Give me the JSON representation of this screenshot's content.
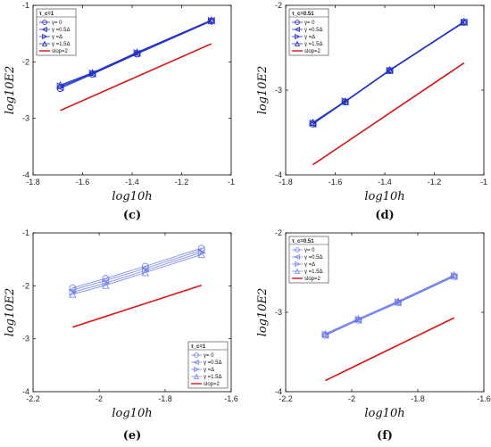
{
  "panels": [
    {
      "label": "(c)",
      "title": "",
      "xlabel": "log10h",
      "ylabel": "log10E2",
      "xlim": [
        -1.8,
        -1.0
      ],
      "ylim": [
        -4,
        -1
      ],
      "xticks": [
        -1.8,
        -1.6,
        -1.4,
        -1.2,
        -1.0
      ],
      "xtick_labels": [
        "-1.8",
        "-1.6",
        "-1.4",
        "-1.2",
        "-1"
      ],
      "yticks": [
        -4,
        -3,
        -2,
        -1
      ],
      "ytick_labels": [
        "-4",
        "-3",
        "-2",
        "-1"
      ],
      "legend_title": "τ_c=1",
      "legend_position": "top-left",
      "marker_color": "#2233cc",
      "marker_opacity": 1,
      "series": [
        {
          "name": "γ= 0",
          "marker": "circle",
          "x": [
            -1.69,
            -1.56,
            -1.38,
            -1.08
          ],
          "y": [
            -2.47,
            -2.22,
            -1.86,
            -1.28
          ]
        },
        {
          "name": "γ =0.5Δ",
          "marker": "triangle-left",
          "x": [
            -1.69,
            -1.56,
            -1.38,
            -1.08
          ],
          "y": [
            -2.45,
            -2.21,
            -1.85,
            -1.27
          ]
        },
        {
          "name": "γ =Δ",
          "marker": "triangle-right",
          "x": [
            -1.69,
            -1.56,
            -1.38,
            -1.08
          ],
          "y": [
            -2.43,
            -2.2,
            -1.84,
            -1.27
          ]
        },
        {
          "name": "γ =1.5Δ",
          "marker": "triangle-up",
          "x": [
            -1.69,
            -1.56,
            -1.38,
            -1.08
          ],
          "y": [
            -2.41,
            -2.19,
            -1.83,
            -1.26
          ]
        }
      ],
      "ref_line": {
        "name": "slop=2",
        "color": "#dd1111",
        "x": [
          -1.69,
          -1.08
        ],
        "y": [
          -2.86,
          -1.68
        ]
      }
    },
    {
      "label": "(d)",
      "title": "",
      "xlabel": "log10h",
      "ylabel": "log10E2",
      "xlim": [
        -1.8,
        -1.0
      ],
      "ylim": [
        -4,
        -2
      ],
      "xticks": [
        -1.8,
        -1.6,
        -1.4,
        -1.2,
        -1.0
      ],
      "xtick_labels": [
        "-1.8",
        "-1.6",
        "-1.4",
        "-1.2",
        "-1"
      ],
      "yticks": [
        -4,
        -3,
        -2
      ],
      "ytick_labels": [
        "-4",
        "-3",
        "-2"
      ],
      "legend_title": "τ_c=0.51",
      "legend_position": "top-left",
      "marker_color": "#2233cc",
      "marker_opacity": 1,
      "series": [
        {
          "name": "γ= 0",
          "marker": "circle",
          "x": [
            -1.69,
            -1.56,
            -1.38,
            -1.08
          ],
          "y": [
            -3.4,
            -3.14,
            -2.77,
            -2.2
          ]
        },
        {
          "name": "γ =0.5Δ",
          "marker": "triangle-left",
          "x": [
            -1.69,
            -1.56,
            -1.38,
            -1.08
          ],
          "y": [
            -3.4,
            -3.14,
            -2.77,
            -2.2
          ]
        },
        {
          "name": "γ =Δ",
          "marker": "triangle-right",
          "x": [
            -1.69,
            -1.56,
            -1.38,
            -1.08
          ],
          "y": [
            -3.39,
            -3.13,
            -2.77,
            -2.2
          ]
        },
        {
          "name": "γ =1.5Δ",
          "marker": "triangle-up",
          "x": [
            -1.69,
            -1.56,
            -1.38,
            -1.08
          ],
          "y": [
            -3.38,
            -3.13,
            -2.76,
            -2.19
          ]
        }
      ],
      "ref_line": {
        "name": "slop=2",
        "color": "#dd1111",
        "x": [
          -1.69,
          -1.08
        ],
        "y": [
          -3.88,
          -2.68
        ]
      }
    },
    {
      "label": "(e)",
      "title": "",
      "xlabel": "log10h",
      "ylabel": "log10E2",
      "xlim": [
        -2.2,
        -1.6
      ],
      "ylim": [
        -4,
        -1
      ],
      "xticks": [
        -2.2,
        -2.0,
        -1.8,
        -1.6
      ],
      "xtick_labels": [
        "-2.2",
        "-2",
        "-1.8",
        "-1.6"
      ],
      "yticks": [
        -4,
        -3,
        -2,
        -1
      ],
      "ytick_labels": [
        "-4",
        "-3",
        "-2",
        "-1"
      ],
      "legend_title": "τ_c=1",
      "legend_position": "bottom-right",
      "marker_color": "#6677ee",
      "marker_opacity": 0.85,
      "series": [
        {
          "name": "γ= 0",
          "marker": "circle",
          "x": [
            -2.08,
            -1.98,
            -1.86,
            -1.69
          ],
          "y": [
            -2.04,
            -1.86,
            -1.63,
            -1.29
          ]
        },
        {
          "name": "γ =0.5Δ",
          "marker": "triangle-left",
          "x": [
            -2.08,
            -1.98,
            -1.86,
            -1.69
          ],
          "y": [
            -2.08,
            -1.9,
            -1.67,
            -1.33
          ]
        },
        {
          "name": "γ =Δ",
          "marker": "triangle-right",
          "x": [
            -2.08,
            -1.98,
            -1.86,
            -1.69
          ],
          "y": [
            -2.12,
            -1.95,
            -1.71,
            -1.37
          ]
        },
        {
          "name": "γ =1.5Δ",
          "marker": "triangle-up",
          "x": [
            -2.08,
            -1.98,
            -1.86,
            -1.69
          ],
          "y": [
            -2.16,
            -1.99,
            -1.75,
            -1.41
          ]
        }
      ],
      "ref_line": {
        "name": "slop=2",
        "color": "#dd1111",
        "x": [
          -2.08,
          -1.69
        ],
        "y": [
          -2.78,
          -1.99
        ]
      }
    },
    {
      "label": "(f)",
      "title": "",
      "xlabel": "log10h",
      "ylabel": "log10E2",
      "xlim": [
        -2.2,
        -1.6
      ],
      "ylim": [
        -4,
        -2
      ],
      "xticks": [
        -2.2,
        -2.0,
        -1.8,
        -1.6
      ],
      "xtick_labels": [
        "-2.2",
        "-2",
        "-1.8",
        "-1.6"
      ],
      "yticks": [
        -4,
        -3,
        -2
      ],
      "ytick_labels": [
        "-4",
        "-3",
        "-2"
      ],
      "legend_title": "τ_c=0.51",
      "legend_position": "top-left",
      "marker_color": "#6677ee",
      "marker_opacity": 0.85,
      "series": [
        {
          "name": "γ= 0",
          "marker": "circle",
          "x": [
            -2.08,
            -1.98,
            -1.86,
            -1.69
          ],
          "y": [
            -3.29,
            -3.1,
            -2.88,
            -2.55
          ]
        },
        {
          "name": "γ =0.5Δ",
          "marker": "triangle-left",
          "x": [
            -2.08,
            -1.98,
            -1.86,
            -1.69
          ],
          "y": [
            -3.29,
            -3.1,
            -2.88,
            -2.55
          ]
        },
        {
          "name": "γ =Δ",
          "marker": "triangle-right",
          "x": [
            -2.08,
            -1.98,
            -1.86,
            -1.69
          ],
          "y": [
            -3.28,
            -3.09,
            -2.87,
            -2.54
          ]
        },
        {
          "name": "γ =1.5Δ",
          "marker": "triangle-up",
          "x": [
            -2.08,
            -1.98,
            -1.86,
            -1.69
          ],
          "y": [
            -3.27,
            -3.08,
            -2.86,
            -2.53
          ]
        }
      ],
      "ref_line": {
        "name": "slop=2",
        "color": "#dd1111",
        "x": [
          -2.08,
          -1.69
        ],
        "y": [
          -3.86,
          -3.07
        ]
      }
    }
  ],
  "chart_data": [
    {
      "type": "line",
      "panel": "(c)",
      "xlabel": "log10h",
      "ylabel": "log10E2",
      "xlim": [
        -1.8,
        -1.0
      ],
      "ylim": [
        -4,
        -1
      ],
      "legend": "top-left",
      "series": [
        {
          "name": "γ= 0",
          "x": [
            -1.69,
            -1.56,
            -1.38,
            -1.08
          ],
          "y": [
            -2.47,
            -2.22,
            -1.86,
            -1.28
          ]
        },
        {
          "name": "γ =0.5Δ",
          "x": [
            -1.69,
            -1.56,
            -1.38,
            -1.08
          ],
          "y": [
            -2.45,
            -2.21,
            -1.85,
            -1.27
          ]
        },
        {
          "name": "γ =Δ",
          "x": [
            -1.69,
            -1.56,
            -1.38,
            -1.08
          ],
          "y": [
            -2.43,
            -2.2,
            -1.84,
            -1.27
          ]
        },
        {
          "name": "γ =1.5Δ",
          "x": [
            -1.69,
            -1.56,
            -1.38,
            -1.08
          ],
          "y": [
            -2.41,
            -2.19,
            -1.83,
            -1.26
          ]
        },
        {
          "name": "slop=2",
          "x": [
            -1.69,
            -1.08
          ],
          "y": [
            -2.86,
            -1.68
          ]
        }
      ]
    },
    {
      "type": "line",
      "panel": "(d)",
      "xlabel": "log10h",
      "ylabel": "log10E2",
      "xlim": [
        -1.8,
        -1.0
      ],
      "ylim": [
        -4,
        -2
      ],
      "legend": "top-left",
      "series": [
        {
          "name": "γ= 0",
          "x": [
            -1.69,
            -1.56,
            -1.38,
            -1.08
          ],
          "y": [
            -3.4,
            -3.14,
            -2.77,
            -2.2
          ]
        },
        {
          "name": "γ =0.5Δ",
          "x": [
            -1.69,
            -1.56,
            -1.38,
            -1.08
          ],
          "y": [
            -3.4,
            -3.14,
            -2.77,
            -2.2
          ]
        },
        {
          "name": "γ =Δ",
          "x": [
            -1.69,
            -1.56,
            -1.38,
            -1.08
          ],
          "y": [
            -3.39,
            -3.13,
            -2.77,
            -2.2
          ]
        },
        {
          "name": "γ =1.5Δ",
          "x": [
            -1.69,
            -1.56,
            -1.38,
            -1.08
          ],
          "y": [
            -3.38,
            -3.13,
            -2.76,
            -2.19
          ]
        },
        {
          "name": "slop=2",
          "x": [
            -1.69,
            -1.08
          ],
          "y": [
            -3.88,
            -2.68
          ]
        }
      ]
    },
    {
      "type": "line",
      "panel": "(e)",
      "xlabel": "log10h",
      "ylabel": "log10E2",
      "xlim": [
        -2.2,
        -1.6
      ],
      "ylim": [
        -4,
        -1
      ],
      "legend": "bottom-right",
      "series": [
        {
          "name": "γ= 0",
          "x": [
            -2.08,
            -1.98,
            -1.86,
            -1.69
          ],
          "y": [
            -2.04,
            -1.86,
            -1.63,
            -1.29
          ]
        },
        {
          "name": "γ =0.5Δ",
          "x": [
            -2.08,
            -1.98,
            -1.86,
            -1.69
          ],
          "y": [
            -2.08,
            -1.9,
            -1.67,
            -1.33
          ]
        },
        {
          "name": "γ =Δ",
          "x": [
            -2.08,
            -1.98,
            -1.86,
            -1.69
          ],
          "y": [
            -2.12,
            -1.95,
            -1.71,
            -1.37
          ]
        },
        {
          "name": "γ =1.5Δ",
          "x": [
            -2.08,
            -1.98,
            -1.86,
            -1.69
          ],
          "y": [
            -2.16,
            -1.99,
            -1.75,
            -1.41
          ]
        },
        {
          "name": "slop=2",
          "x": [
            -2.08,
            -1.69
          ],
          "y": [
            -2.78,
            -1.99
          ]
        }
      ]
    },
    {
      "type": "line",
      "panel": "(f)",
      "xlabel": "log10h",
      "ylabel": "log10E2",
      "xlim": [
        -2.2,
        -1.6
      ],
      "ylim": [
        -4,
        -2
      ],
      "legend": "top-left",
      "series": [
        {
          "name": "γ= 0",
          "x": [
            -2.08,
            -1.98,
            -1.86,
            -1.69
          ],
          "y": [
            -3.29,
            -3.1,
            -2.88,
            -2.55
          ]
        },
        {
          "name": "γ =0.5Δ",
          "x": [
            -2.08,
            -1.98,
            -1.86,
            -1.69
          ],
          "y": [
            -3.29,
            -3.1,
            -2.88,
            -2.55
          ]
        },
        {
          "name": "γ =Δ",
          "x": [
            -2.08,
            -1.98,
            -1.86,
            -1.69
          ],
          "y": [
            -3.28,
            -3.09,
            -2.87,
            -2.54
          ]
        },
        {
          "name": "γ =1.5Δ",
          "x": [
            -2.08,
            -1.98,
            -1.86,
            -1.69
          ],
          "y": [
            -3.27,
            -3.08,
            -2.86,
            -2.53
          ]
        },
        {
          "name": "slop=2",
          "x": [
            -2.08,
            -1.69
          ],
          "y": [
            -3.86,
            -3.07
          ]
        }
      ]
    }
  ]
}
